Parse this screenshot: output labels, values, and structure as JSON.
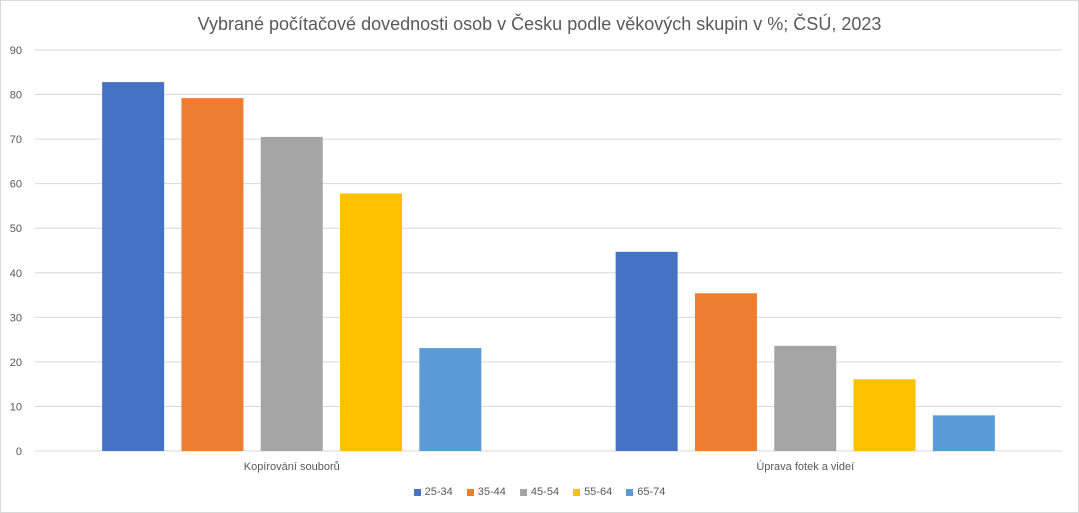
{
  "chart_data": {
    "type": "bar",
    "title": "Vybrané počítačové dovednosti osob v Česku podle věkových skupin v %; ČSÚ, 2023",
    "categories": [
      "Kopírování souborů",
      "Úprava fotek a videí"
    ],
    "series": [
      {
        "name": "25-34",
        "color": "#4472C4",
        "values": [
          82.8,
          44.7
        ]
      },
      {
        "name": "35-44",
        "color": "#ED7D31",
        "values": [
          79.2,
          35.4
        ]
      },
      {
        "name": "45-54",
        "color": "#A5A5A5",
        "values": [
          70.5,
          23.6
        ]
      },
      {
        "name": "55-64",
        "color": "#FFC000",
        "values": [
          57.8,
          16.1
        ]
      },
      {
        "name": "65-74",
        "color": "#5B9BD5",
        "values": [
          23.1,
          8.0
        ]
      }
    ],
    "ylim": [
      0,
      90
    ],
    "yticks": [
      "0",
      "10",
      "20",
      "30",
      "40",
      "50",
      "60",
      "70",
      "80",
      "90"
    ],
    "grid": true,
    "legend": "bottom"
  }
}
